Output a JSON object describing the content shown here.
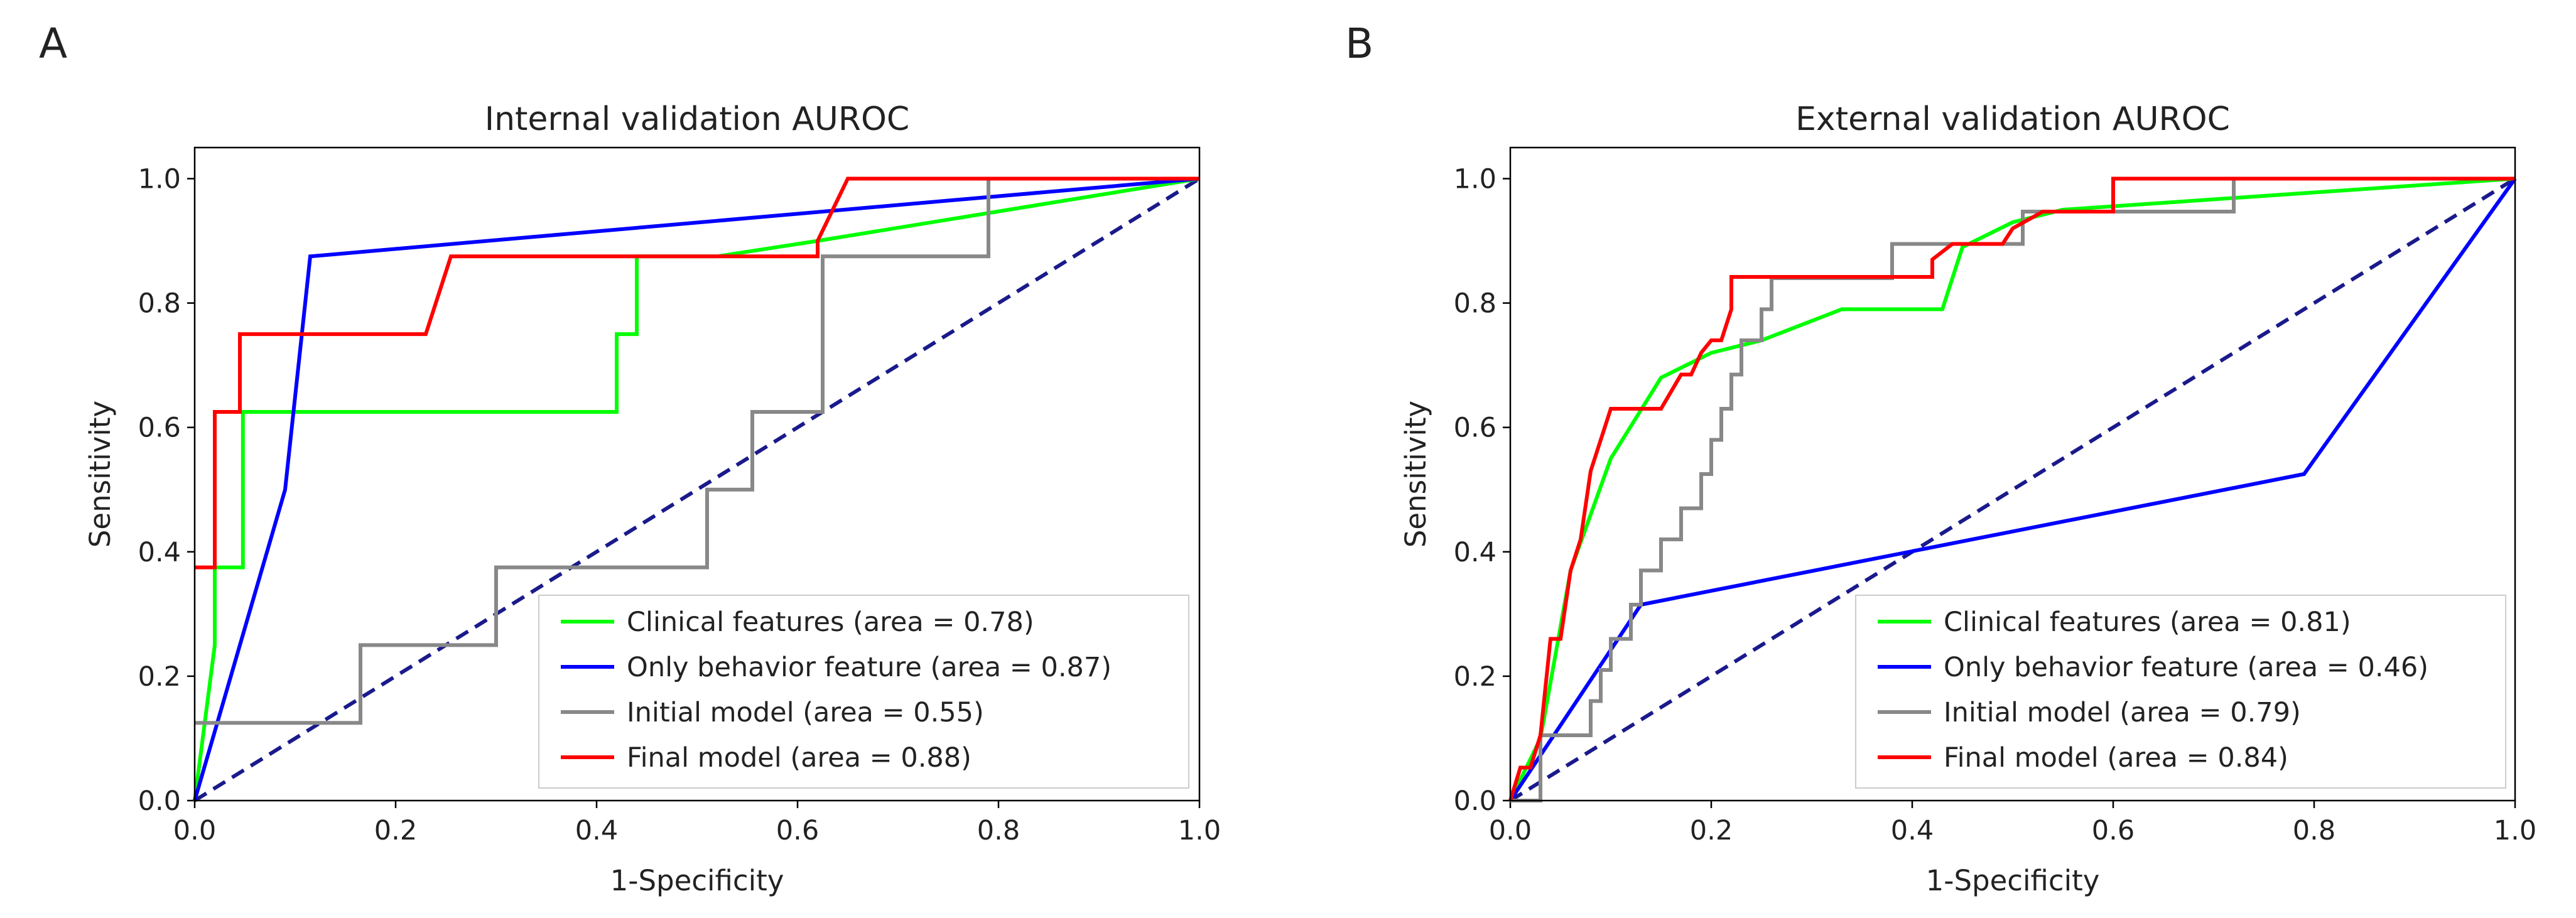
{
  "chart_data": [
    {
      "type": "line",
      "panel_label": "A",
      "title": "Internal validation AUROC",
      "xlabel": "1-Specificity",
      "ylabel": "Sensitivity",
      "xlim": [
        0,
        1
      ],
      "ylim": [
        0,
        1.05
      ],
      "xticks": [
        "0.0",
        "0.2",
        "0.4",
        "0.6",
        "0.8",
        "1.0"
      ],
      "yticks": [
        "0.0",
        "0.2",
        "0.4",
        "0.6",
        "0.8",
        "1.0"
      ],
      "grid": false,
      "legend_position": "lower-right",
      "diagonal_color": "#1a1a8c",
      "series": [
        {
          "name": "Clinical features (area = 0.78)",
          "color": "#00ff00",
          "x": [
            0,
            0.02,
            0.02,
            0.048,
            0.048,
            0.42,
            0.42,
            0.44,
            0.44,
            0.52,
            0.62,
            1.0
          ],
          "y": [
            0,
            0.25,
            0.375,
            0.375,
            0.625,
            0.625,
            0.75,
            0.75,
            0.875,
            0.875,
            0.9,
            1.0
          ]
        },
        {
          "name": "Only behavior feature (area = 0.87)",
          "color": "#0000ff",
          "x": [
            0,
            0.09,
            0.115,
            1.0
          ],
          "y": [
            0,
            0.5,
            0.875,
            1.0
          ]
        },
        {
          "name": "Initial model (area = 0.55)",
          "color": "#888888",
          "x": [
            0,
            0.165,
            0.165,
            0.3,
            0.3,
            0.51,
            0.51,
            0.555,
            0.555,
            0.625,
            0.625,
            0.79,
            0.79,
            1.0
          ],
          "y": [
            0.125,
            0.125,
            0.25,
            0.25,
            0.375,
            0.375,
            0.5,
            0.5,
            0.625,
            0.625,
            0.875,
            0.875,
            1.0,
            1.0
          ]
        },
        {
          "name": "Final model (area = 0.88)",
          "color": "#ff0000",
          "x": [
            0,
            0.02,
            0.02,
            0.045,
            0.045,
            0.23,
            0.255,
            0.62,
            0.62,
            0.65,
            0.65,
            1.0
          ],
          "y": [
            0.375,
            0.375,
            0.625,
            0.625,
            0.75,
            0.75,
            0.875,
            0.875,
            0.9,
            1.0,
            1.0,
            1.0
          ]
        }
      ]
    },
    {
      "type": "line",
      "panel_label": "B",
      "title": "External validation AUROC",
      "xlabel": "1-Specificity",
      "ylabel": "Sensitivity",
      "xlim": [
        0,
        1
      ],
      "ylim": [
        0,
        1.05
      ],
      "xticks": [
        "0.0",
        "0.2",
        "0.4",
        "0.6",
        "0.8",
        "1.0"
      ],
      "yticks": [
        "0.0",
        "0.2",
        "0.4",
        "0.6",
        "0.8",
        "1.0"
      ],
      "grid": false,
      "legend_position": "lower-right",
      "diagonal_color": "#1a1a8c",
      "series": [
        {
          "name": "Clinical features (area = 0.81)",
          "color": "#00ff00",
          "x": [
            0,
            0.03,
            0.06,
            0.1,
            0.15,
            0.2,
            0.25,
            0.33,
            0.43,
            0.45,
            0.5,
            0.55,
            1.0
          ],
          "y": [
            0,
            0.1,
            0.37,
            0.55,
            0.68,
            0.72,
            0.74,
            0.79,
            0.79,
            0.89,
            0.93,
            0.95,
            1.0
          ]
        },
        {
          "name": "Only behavior feature (area = 0.46)",
          "color": "#0000ff",
          "x": [
            0,
            0.13,
            0.79,
            1.0
          ],
          "y": [
            0,
            0.315,
            0.525,
            1.0
          ]
        },
        {
          "name": "Initial model (area = 0.79)",
          "color": "#888888",
          "x": [
            0,
            0.03,
            0.03,
            0.08,
            0.08,
            0.09,
            0.09,
            0.1,
            0.1,
            0.12,
            0.12,
            0.13,
            0.13,
            0.15,
            0.15,
            0.17,
            0.17,
            0.19,
            0.19,
            0.2,
            0.2,
            0.21,
            0.21,
            0.22,
            0.22,
            0.23,
            0.23,
            0.25,
            0.25,
            0.26,
            0.26,
            0.38,
            0.38,
            0.51,
            0.51,
            0.72,
            0.72,
            1.0
          ],
          "y": [
            0,
            0,
            0.105,
            0.105,
            0.16,
            0.16,
            0.21,
            0.21,
            0.26,
            0.26,
            0.315,
            0.315,
            0.37,
            0.37,
            0.42,
            0.42,
            0.47,
            0.47,
            0.525,
            0.525,
            0.58,
            0.58,
            0.63,
            0.63,
            0.685,
            0.685,
            0.74,
            0.74,
            0.79,
            0.79,
            0.84,
            0.84,
            0.895,
            0.895,
            0.947,
            0.947,
            1.0,
            1.0
          ]
        },
        {
          "name": "Final model (area = 0.84)",
          "color": "#ff0000",
          "x": [
            0,
            0.01,
            0.02,
            0.03,
            0.04,
            0.05,
            0.06,
            0.07,
            0.08,
            0.09,
            0.1,
            0.15,
            0.17,
            0.18,
            0.19,
            0.2,
            0.21,
            0.22,
            0.22,
            0.25,
            0.3,
            0.4,
            0.42,
            0.42,
            0.44,
            0.45,
            0.49,
            0.5,
            0.53,
            0.6,
            0.6,
            0.63,
            1.0
          ],
          "y": [
            0,
            0.053,
            0.053,
            0.105,
            0.26,
            0.26,
            0.37,
            0.42,
            0.53,
            0.58,
            0.63,
            0.63,
            0.685,
            0.685,
            0.72,
            0.74,
            0.74,
            0.79,
            0.842,
            0.842,
            0.842,
            0.842,
            0.842,
            0.87,
            0.895,
            0.895,
            0.895,
            0.92,
            0.947,
            0.947,
            1.0,
            1.0,
            1.0
          ]
        }
      ]
    }
  ]
}
